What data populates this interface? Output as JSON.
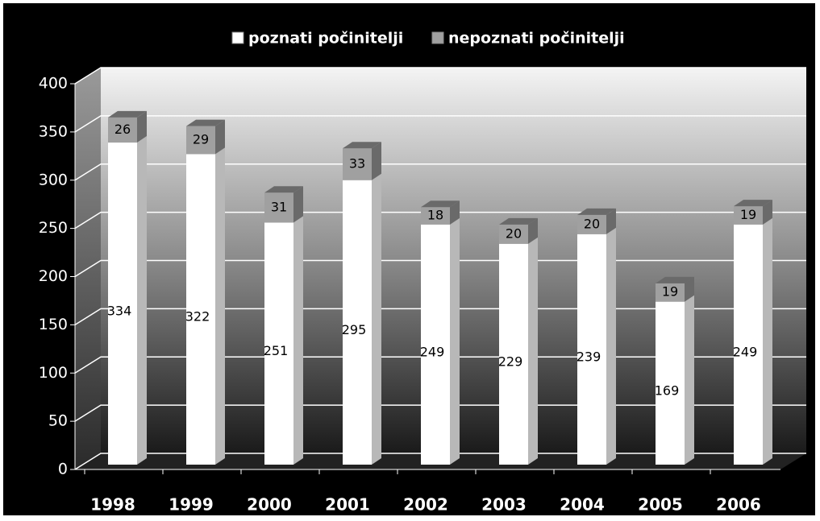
{
  "chart_data": {
    "type": "bar3d_stacked",
    "categories": [
      "1998",
      "1999",
      "2000",
      "2001",
      "2002",
      "2003",
      "2004",
      "2005",
      "2006"
    ],
    "series": [
      {
        "name": "poznati počinitelji",
        "color": "#ffffff",
        "values": [
          334,
          322,
          251,
          295,
          249,
          229,
          239,
          169,
          249
        ]
      },
      {
        "name": "nepoznati počinitelji",
        "color": "#a0a0a0",
        "values": [
          26,
          29,
          31,
          33,
          18,
          20,
          20,
          19,
          19
        ]
      }
    ],
    "ylim": [
      0,
      400
    ],
    "yticks": [
      0,
      50,
      100,
      150,
      200,
      250,
      300,
      350,
      400
    ],
    "grid": true,
    "legend": "top"
  }
}
